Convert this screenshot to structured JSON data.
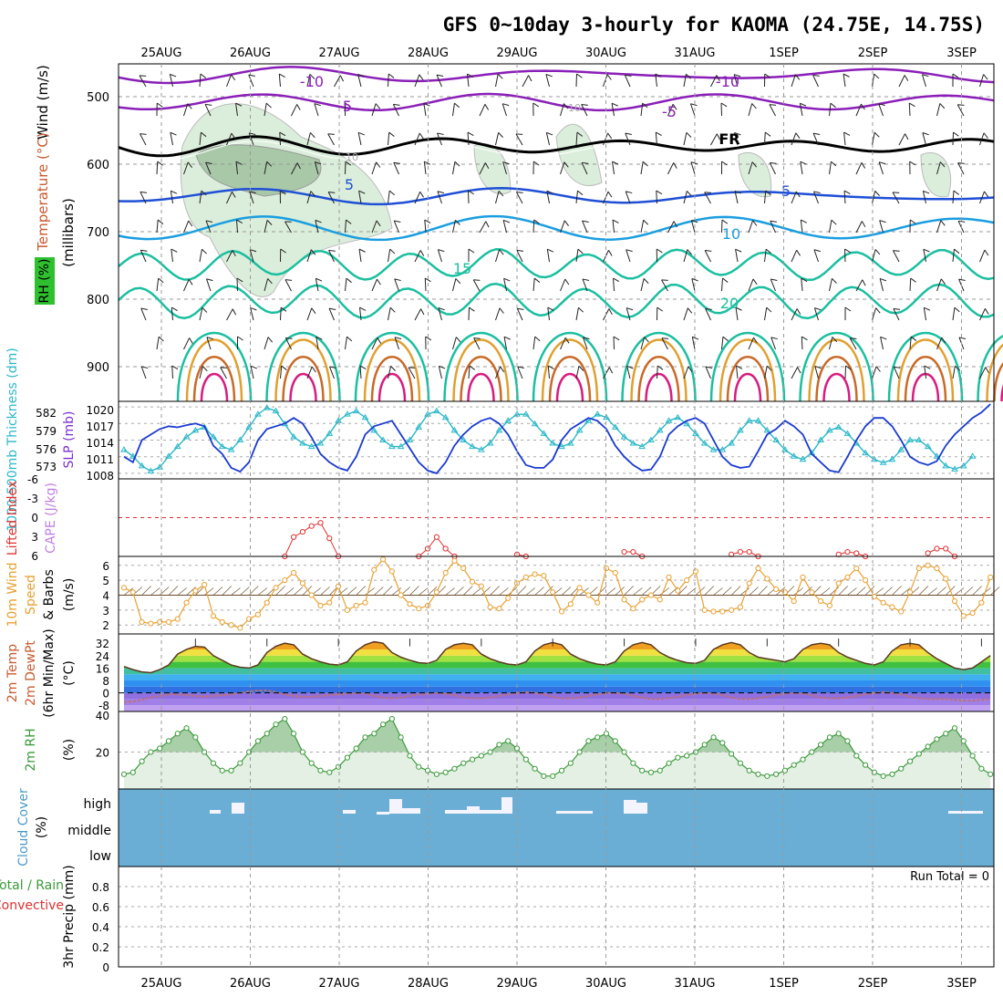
{
  "title": "GFS 0~10day 3-hourly for KAOMA (24.75E, 14.75S)",
  "dates": [
    "25AUG",
    "26AUG",
    "27AUG",
    "28AUG",
    "29AUG",
    "30AUG",
    "31AUG",
    "1SEP",
    "2SEP",
    "3SEP"
  ],
  "colors": {
    "rh_fill": "#dbeedb",
    "purple": "#8a1fb8",
    "blue": "#1f4fd6",
    "skyblue": "#1a9ee0",
    "teal": "#1bbfa0",
    "orange": "#e0a030",
    "brown": "#c86a28",
    "magenta": "#d81c80",
    "slp": "#1a3bd0",
    "thick": "#2ab8c8",
    "li_red": "#e03030",
    "wind_orange": "#e8a030",
    "rh2m": "#3a9a3a",
    "cloud_bg": "#6aaed6"
  },
  "panels": {
    "upper": {
      "axis_label_wind": "Wind (m/s)",
      "axis_label_temp": "Temperature (°C)",
      "axis_label_rh": "RH (%)",
      "axis_label_mb": "(millibars)",
      "pressure_ticks": [
        500,
        600,
        700,
        800,
        900
      ],
      "contour_labels": [
        "-10",
        "-5",
        "-10",
        "-5",
        "FR",
        "5",
        "5",
        "10",
        "15",
        "20",
        "10",
        "10"
      ]
    },
    "slp": {
      "label_thick": "1000-500mb Thickness (dm)",
      "label_slp": "SLP (mb)",
      "thick_ticks": [
        "582",
        "579",
        "576",
        "573"
      ],
      "slp_ticks": [
        "1020",
        "1017",
        "1014",
        "1011",
        "1008"
      ]
    },
    "li": {
      "label_li": "Lifted Index",
      "label_cape": "CAPE (J/kg)",
      "ticks": [
        "-6",
        "-3",
        "0",
        "3",
        "6"
      ]
    },
    "wind": {
      "label1": "10m Wind",
      "label2": "Speed",
      "label3": "& Barbs",
      "label4": "(m/s)",
      "ticks": [
        "6",
        "5",
        "4",
        "3",
        "2"
      ]
    },
    "temp": {
      "label1": "2m Temp",
      "label2": "2m DewPt",
      "label3": "(6hr Min/Max)",
      "label4": "(°C)",
      "ticks": [
        "32",
        "24",
        "16",
        "8",
        "0",
        "-8"
      ]
    },
    "rh": {
      "label1": "2m RH",
      "label2": "(%)",
      "ticks": [
        "40",
        "20"
      ]
    },
    "cloud": {
      "label1": "Cloud Cover",
      "label2": "(%)",
      "levels": [
        "high",
        "middle",
        "low"
      ]
    },
    "precip": {
      "label1": "Total / Rain",
      "label2": "Convective",
      "label3": "3hr Precip (mm)",
      "ticks": [
        "0.8",
        "0.6",
        "0.4",
        "0.2",
        "0"
      ],
      "run_total": "Run Total = 0"
    }
  },
  "chart_data": [
    {
      "type": "line",
      "name": "SLP (mb)",
      "x_start": "25AUG",
      "step_hours": 3,
      "ylim": [
        1007,
        1021
      ],
      "values": [
        1011,
        1010,
        1014,
        1015,
        1016,
        1016.5,
        1016.3,
        1016.7,
        1017,
        1016.5,
        1013,
        1011.5,
        1009,
        1008.3,
        1010,
        1014,
        1016,
        1016.5,
        1017,
        1018,
        1017,
        1014.5,
        1011.5,
        1010,
        1009,
        1008.5,
        1011,
        1015,
        1016.5,
        1017,
        1017.5,
        1015,
        1012.5,
        1010,
        1008.5,
        1008,
        1010,
        1013,
        1015,
        1016.5,
        1017.5,
        1018,
        1017,
        1015,
        1012,
        1009.5,
        1009,
        1009,
        1010.5,
        1014,
        1016,
        1017,
        1018,
        1017.5,
        1016,
        1013,
        1011,
        1009.5,
        1008.5,
        1008.7,
        1011,
        1015,
        1016.5,
        1017.5,
        1018,
        1017,
        1014,
        1011,
        1009.5,
        1009,
        1009.2,
        1012,
        1015,
        1016,
        1017.5,
        1016.5,
        1015,
        1011.5,
        1010,
        1008.5,
        1008.2,
        1011,
        1014,
        1016.5,
        1018,
        1018,
        1016.5,
        1014,
        1011,
        1010,
        1009.5,
        1010.2,
        1013,
        1015,
        1016.5,
        1018,
        1019,
        1020.5
      ]
    },
    {
      "type": "line",
      "name": "1000-500mb Thickness (dm)",
      "x_start": "25AUG",
      "step_hours": 3,
      "ylim": [
        571.5,
        583.5
      ],
      "values": [
        576,
        575,
        573.5,
        572.7,
        573.3,
        575,
        576.5,
        578,
        579,
        579.5,
        578,
        576.5,
        576,
        577.5,
        579.5,
        581.5,
        582.5,
        582,
        580,
        578,
        577,
        576.5,
        577,
        578.5,
        580.5,
        581.5,
        582,
        581,
        579,
        577.5,
        576.5,
        576.5,
        577.5,
        579.5,
        581.5,
        582,
        581,
        579,
        577.5,
        576.5,
        576,
        577,
        579,
        580.5,
        581.5,
        581.5,
        580,
        578.5,
        577,
        576.5,
        577,
        579,
        580.5,
        581.5,
        581,
        579.5,
        578,
        577,
        576.5,
        577.5,
        579,
        580.5,
        581,
        580,
        578.5,
        577,
        576,
        576,
        577,
        579,
        580.5,
        580.5,
        579,
        577.5,
        576,
        575,
        574.5,
        575.5,
        577.5,
        579,
        579.5,
        578.5,
        577,
        575.5,
        574.5,
        574,
        574.5,
        576,
        577.5,
        577.5,
        576.5,
        575,
        573.5,
        573,
        573.5,
        575
      ]
    },
    {
      "type": "line",
      "name": "Lifted Index",
      "x_start": "25AUG",
      "step_hours": 3,
      "ylim": [
        -6,
        6
      ],
      "values": [
        null,
        null,
        null,
        null,
        null,
        null,
        null,
        null,
        null,
        null,
        null,
        null,
        null,
        null,
        null,
        null,
        null,
        null,
        6,
        3,
        2.2,
        1.3,
        0.8,
        3.2,
        6,
        null,
        null,
        null,
        null,
        null,
        null,
        null,
        null,
        6,
        4.8,
        3,
        4.8,
        6,
        null,
        null,
        null,
        null,
        null,
        null,
        5.7,
        6,
        null,
        null,
        null,
        null,
        null,
        null,
        null,
        null,
        null,
        null,
        5.3,
        5.3,
        6,
        null,
        null,
        null,
        null,
        null,
        null,
        null,
        null,
        null,
        5.7,
        5.3,
        5.3,
        6,
        null,
        null,
        null,
        null,
        null,
        null,
        null,
        null,
        5.7,
        5.3,
        5.5,
        6,
        null,
        null,
        null,
        null,
        null,
        null,
        5.5,
        4.8,
        4.8,
        6,
        null,
        null,
        null,
        null,
        null,
        null,
        null,
        null,
        null,
        null
      ]
    },
    {
      "type": "line",
      "name": "10m Wind Speed (m/s)",
      "x_start": "25AUG",
      "step_hours": 3,
      "ylim": [
        1.4,
        6.6
      ],
      "values": [
        4.5,
        4.2,
        2.2,
        2.1,
        2.2,
        2.2,
        2.4,
        3.5,
        4.3,
        4.7,
        2.6,
        2.2,
        2.0,
        1.8,
        2.4,
        2.7,
        3.5,
        4.5,
        5.0,
        5.5,
        4.8,
        4.0,
        3.3,
        3.5,
        4.6,
        3.0,
        3.3,
        3.5,
        5.7,
        6.4,
        5.6,
        4.0,
        3.4,
        3.1,
        3.3,
        4.2,
        5.5,
        6.3,
        5.8,
        4.9,
        4.6,
        3.2,
        3.1,
        3.8,
        4.8,
        5.2,
        5.4,
        5.3,
        4.2,
        2.9,
        3.4,
        4.5,
        4.0,
        3.5,
        5.8,
        5.5,
        3.7,
        3.1,
        3.7,
        4.0,
        3.7,
        5.2,
        4.3,
        5.0,
        5.6,
        3.0,
        2.9,
        2.9,
        3.0,
        3.2,
        4.8,
        5.8,
        5.1,
        4.4,
        4.2,
        3.6,
        5.2,
        4.2,
        3.6,
        3.3,
        4.8,
        5.2,
        5.8,
        5.0,
        3.9,
        3.5,
        3.2,
        2.9,
        4.2,
        5.8,
        6.0,
        5.8,
        5.1,
        3.6,
        2.6,
        2.8,
        3.5,
        5.2
      ]
    },
    {
      "type": "area",
      "name": "2m Temp (°C)",
      "x_start": "25AUG",
      "step_hours": 3,
      "ylim": [
        -12,
        38
      ],
      "values": [
        17,
        15,
        13.5,
        13,
        15,
        18,
        25,
        28,
        30,
        29.5,
        24,
        21,
        18,
        16.5,
        16,
        18,
        26,
        30,
        32,
        31,
        25,
        22,
        20,
        18.5,
        18,
        20,
        27,
        31,
        33,
        32,
        26,
        23,
        21,
        19.5,
        19,
        21,
        28,
        31,
        32,
        31,
        25,
        22,
        20,
        18.5,
        18,
        20,
        27,
        31,
        32.5,
        31,
        25,
        22,
        20,
        18.5,
        18,
        20,
        27,
        31,
        32.5,
        31,
        26,
        23,
        21,
        19.5,
        19,
        21,
        28,
        31,
        32.5,
        31,
        26,
        23,
        22,
        21,
        20,
        22,
        28,
        31,
        32,
        31,
        26,
        23,
        21,
        19,
        18,
        20,
        27,
        31,
        32,
        31,
        26,
        22,
        19,
        16,
        15,
        16,
        20,
        24
      ]
    },
    {
      "type": "line",
      "name": "2m DewPt (°C)",
      "x_start": "25AUG",
      "step_hours": 3,
      "ylim": [
        -12,
        38
      ],
      "values": [
        -6,
        -5.5,
        -4.5,
        -3,
        -2,
        -1,
        -1,
        -1.5,
        -2,
        -2.5,
        -2,
        -1.5,
        -1,
        0,
        1,
        1.5,
        1.5,
        0.5,
        -1,
        -2,
        -2.5,
        -2.5,
        -2,
        -1.5,
        -1,
        -0.5,
        0,
        -0.5,
        -2,
        -3,
        -3.5,
        -3,
        -2,
        -1,
        -0.5,
        0,
        -0.5,
        -1.5,
        -3,
        -3.5,
        -3.5,
        -3,
        -2,
        -1,
        0,
        0.5,
        0,
        -1,
        -2.5,
        -3.5,
        -3.5,
        -3,
        -2,
        -1,
        0,
        0,
        -0.5,
        -2,
        -3,
        -4,
        -4,
        -3.5,
        -2.5,
        -1.5,
        -0.5,
        0,
        -0.5,
        -1.5,
        -3,
        -4,
        -4,
        -3.5,
        -2.5,
        -1.5,
        -0.5,
        0,
        -0.5,
        -1.5,
        -3,
        -3.5,
        -3.5,
        -3,
        -2,
        -1,
        0,
        0.5,
        0,
        -1,
        -2.5,
        -3.5,
        -4,
        -4,
        -4,
        -4.5,
        -5,
        -5,
        -4.5,
        -4
      ]
    },
    {
      "type": "area",
      "name": "2m RH (%)",
      "x_start": "25AUG",
      "step_hours": 3,
      "ylim": [
        0,
        42
      ],
      "values": [
        8,
        9,
        15,
        20,
        22,
        26,
        30,
        33,
        28,
        20,
        14,
        10,
        10,
        14,
        20,
        26,
        30,
        35,
        38,
        30,
        20,
        14,
        10,
        9,
        12,
        17,
        22,
        28,
        30,
        35,
        38,
        28,
        18,
        12,
        10,
        8,
        9,
        11,
        14,
        16,
        18,
        20,
        24,
        26,
        22,
        16,
        11,
        7,
        7,
        10,
        14,
        20,
        26,
        28,
        30,
        26,
        20,
        14,
        10,
        9,
        10,
        14,
        17,
        18,
        20,
        24,
        28,
        25,
        19,
        14,
        10,
        8,
        7,
        8,
        10,
        13,
        16,
        20,
        24,
        28,
        30,
        26,
        18,
        13,
        9,
        7,
        8,
        11,
        15,
        19,
        23,
        27,
        30,
        33,
        26,
        18,
        11,
        8
      ]
    }
  ]
}
